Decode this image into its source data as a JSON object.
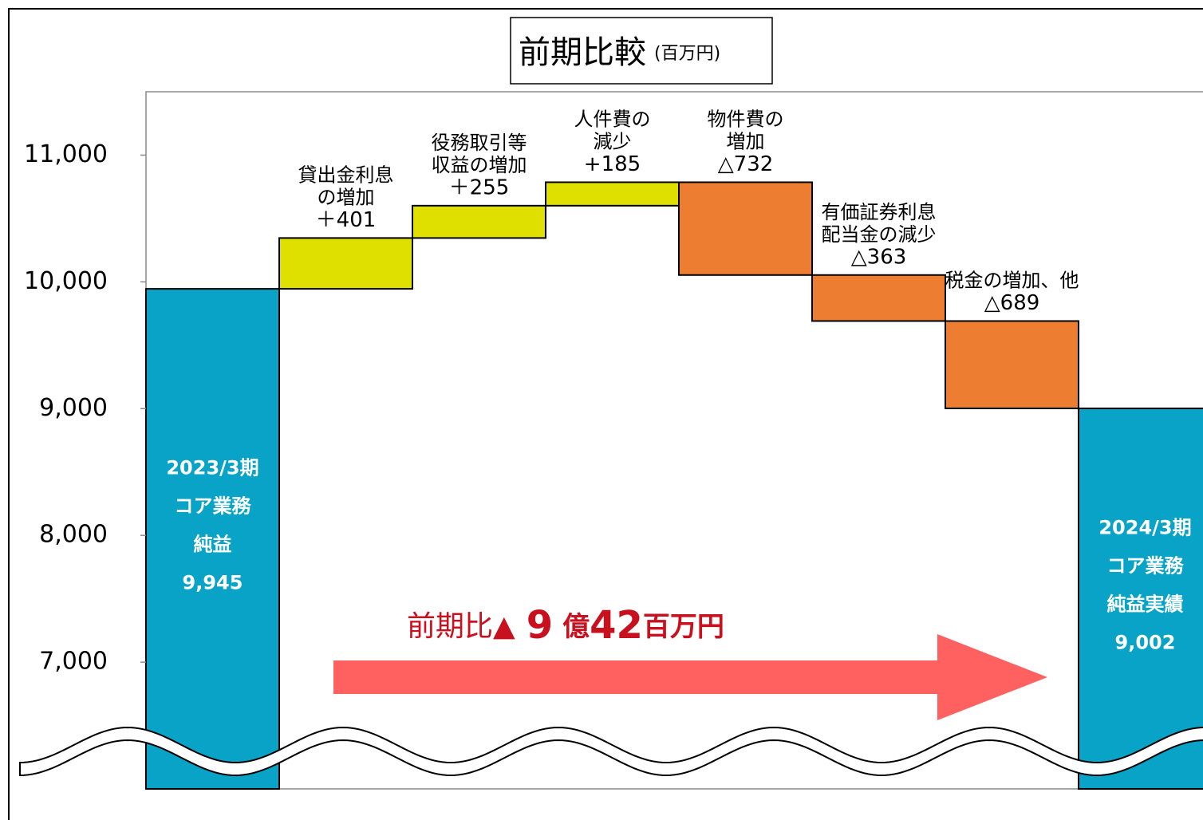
{
  "chart_data": {
    "type": "waterfall",
    "title": "前期比較",
    "subtitle": "(百万円)",
    "categories": [
      [
        "2023/3期",
        "コア業務",
        "純益"
      ],
      [
        "貸出金利息",
        "の増加"
      ],
      [
        "役務取引等",
        "収益の増加"
      ],
      [
        "人件費の",
        "減少"
      ],
      [
        "物件費の",
        "増加"
      ],
      [
        "有価証券利息",
        "配当金の減少"
      ],
      [
        "税金の増加、他"
      ],
      [
        "2024/3期",
        "コア業務",
        "純益実績"
      ]
    ],
    "measures": [
      "absolute",
      "relative",
      "relative",
      "relative",
      "relative",
      "relative",
      "relative",
      "absolute"
    ],
    "values": [
      9945,
      401,
      255,
      185,
      -732,
      -363,
      -689,
      9002
    ],
    "value_labels": [
      "9,945",
      "＋401",
      "＋255",
      "+185",
      "△732",
      "△363",
      "△689",
      "9,002"
    ],
    "colors": {
      "total": "#08a3c6",
      "increase": "#e0e000",
      "decrease": "#ed7d31"
    },
    "ylim": [
      6000,
      11500
    ],
    "yticks": [
      {
        "value": 7000,
        "label": "7,000"
      },
      {
        "value": 8000,
        "label": "8,000"
      },
      {
        "value": 9000,
        "label": "9,000"
      },
      {
        "value": 10000,
        "label": "10,000"
      },
      {
        "value": 11000,
        "label": "11,000"
      }
    ],
    "annotation": [
      "前期比",
      "▲",
      "9",
      "億",
      "42",
      "百万円"
    ]
  }
}
